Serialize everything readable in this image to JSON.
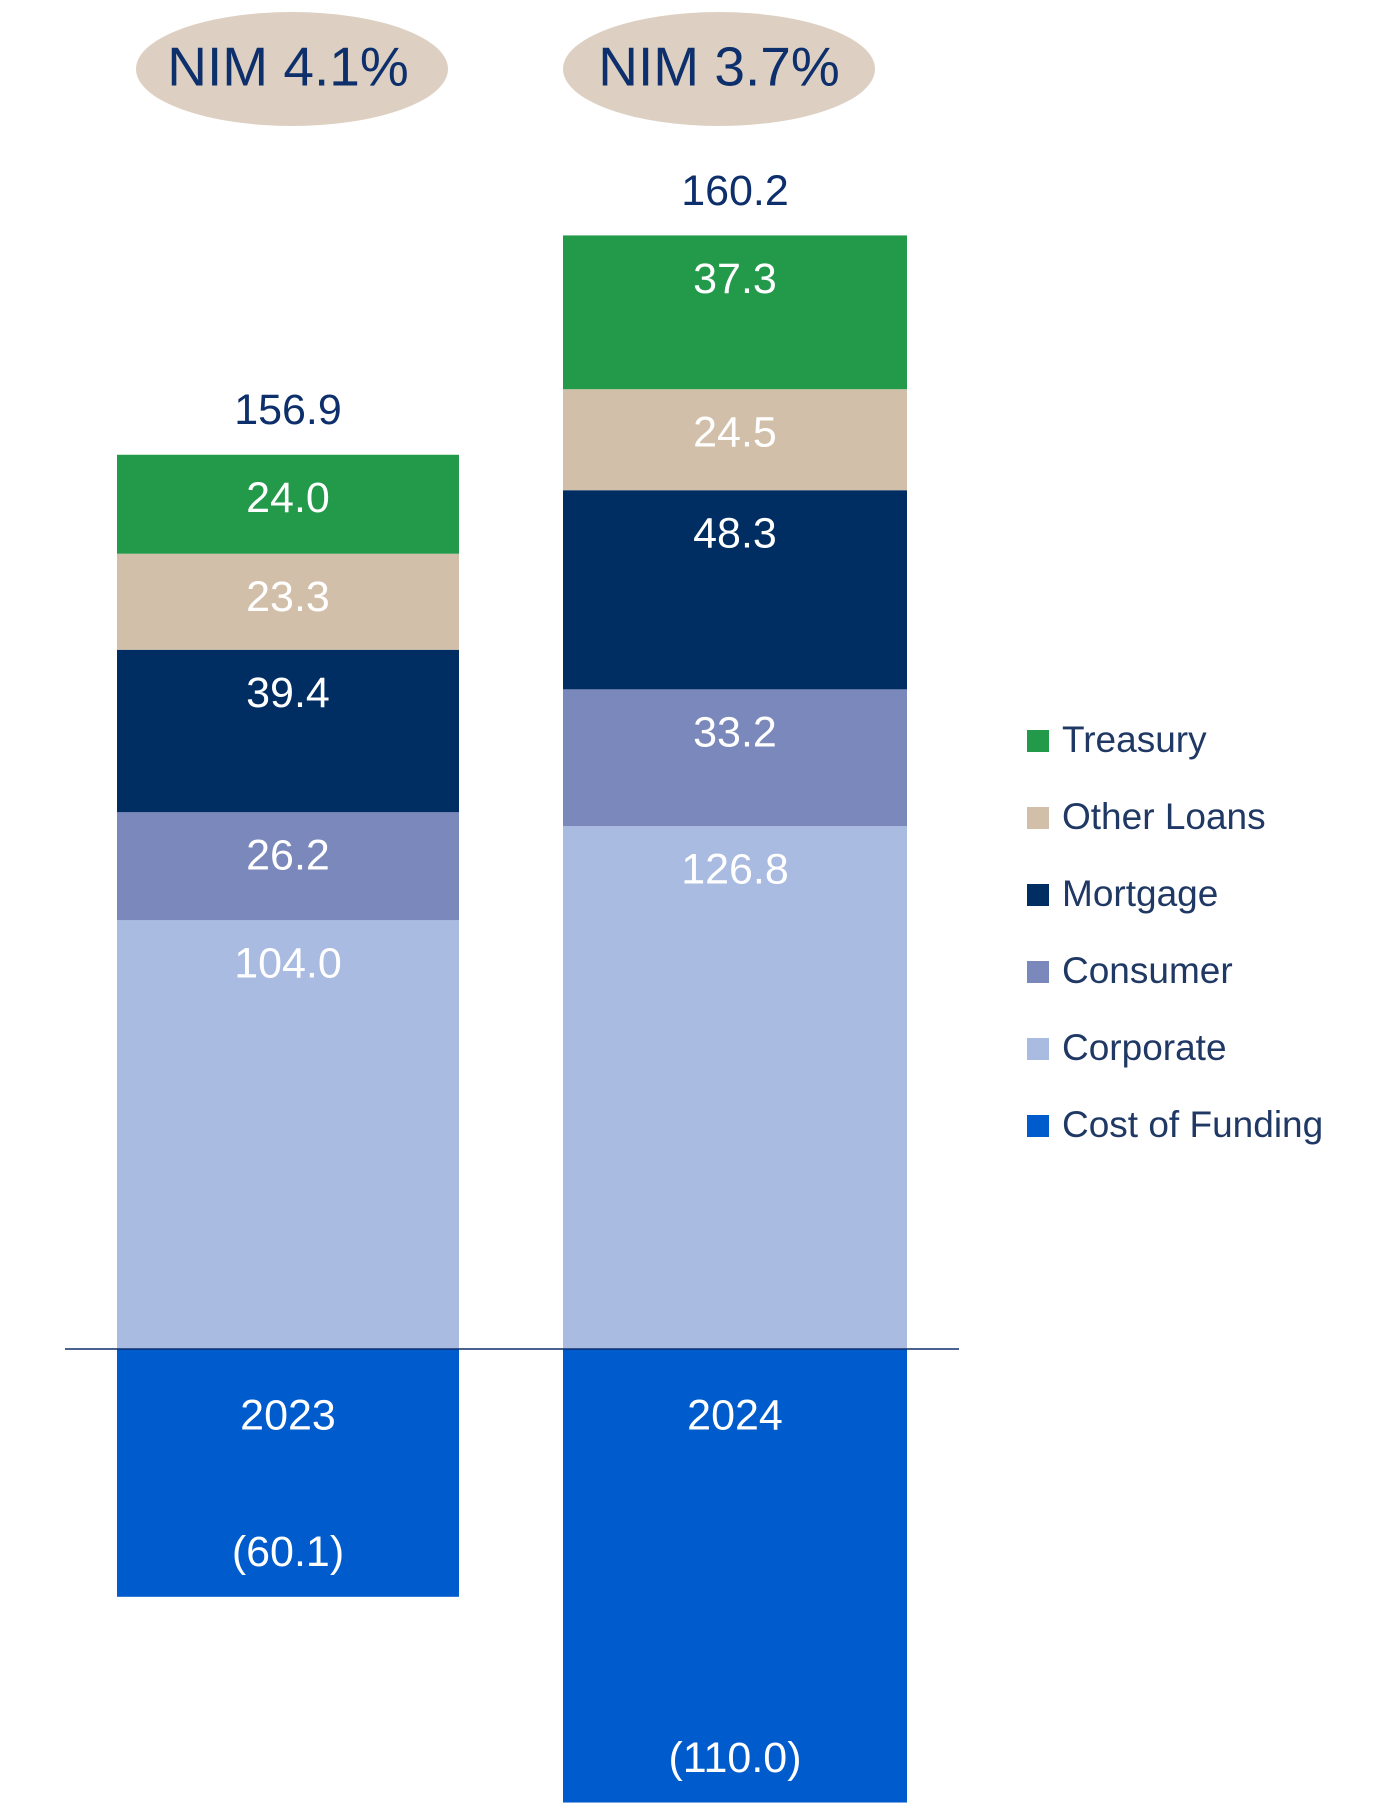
{
  "chart_data": {
    "type": "stacked_bar",
    "categories": [
      "2023",
      "2024"
    ],
    "series": [
      {
        "name": "Treasury",
        "color": "#23994a",
        "values": [
          24.0,
          37.3
        ],
        "value_labels": [
          "24.0",
          "37.3"
        ]
      },
      {
        "name": "Other Loans",
        "color": "#d2bfa9",
        "values": [
          23.3,
          24.5
        ]
      },
      {
        "name": "Mortgage",
        "color": "#002d62",
        "values": [
          39.4,
          48.3
        ]
      },
      {
        "name": "Consumer",
        "color": "#7b88bb",
        "values": [
          26.2,
          33.2
        ]
      },
      {
        "name": "Corporate",
        "color": "#a9bbe0",
        "values": [
          104.0,
          126.8
        ],
        "value_labels": [
          "104.0",
          "126.8"
        ]
      },
      {
        "name": "Cost of Funding",
        "color": "#005bcc",
        "values": [
          -60.1,
          -110.0
        ],
        "value_labels": [
          "(60.1)",
          "(110.0)"
        ]
      }
    ],
    "totals": [
      156.9,
      160.2
    ],
    "annotations": [
      "NIM 4.1%",
      "NIM 3.7%"
    ],
    "ylim": [
      -110.6,
      327.2
    ],
    "legend": "right"
  }
}
